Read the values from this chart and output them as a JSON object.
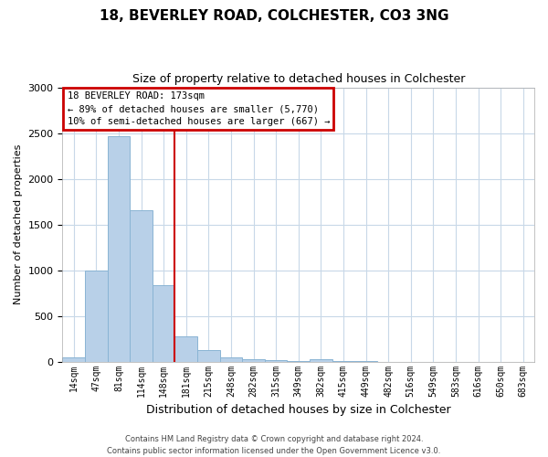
{
  "title1": "18, BEVERLEY ROAD, COLCHESTER, CO3 3NG",
  "title2": "Size of property relative to detached houses in Colchester",
  "xlabel": "Distribution of detached houses by size in Colchester",
  "ylabel": "Number of detached properties",
  "bar_labels": [
    "14sqm",
    "47sqm",
    "81sqm",
    "114sqm",
    "148sqm",
    "181sqm",
    "215sqm",
    "248sqm",
    "282sqm",
    "315sqm",
    "349sqm",
    "382sqm",
    "415sqm",
    "449sqm",
    "482sqm",
    "516sqm",
    "549sqm",
    "583sqm",
    "616sqm",
    "650sqm",
    "683sqm"
  ],
  "bar_values": [
    50,
    1000,
    2470,
    1660,
    840,
    275,
    125,
    50,
    30,
    15,
    10,
    25,
    5,
    10,
    0,
    0,
    0,
    0,
    0,
    0,
    0
  ],
  "bar_color": "#b8d0e8",
  "bar_edge_color": "#8ab4d4",
  "vline_color": "#cc0000",
  "annotation_title": "18 BEVERLEY ROAD: 173sqm",
  "annotation_line1": "← 89% of detached houses are smaller (5,770)",
  "annotation_line2": "10% of semi-detached houses are larger (667) →",
  "annotation_box_color": "#cc0000",
  "ylim": [
    0,
    3000
  ],
  "yticks": [
    0,
    500,
    1000,
    1500,
    2000,
    2500,
    3000
  ],
  "footer1": "Contains HM Land Registry data © Crown copyright and database right 2024.",
  "footer2": "Contains public sector information licensed under the Open Government Licence v3.0.",
  "bg_color": "#ffffff",
  "grid_color": "#c8d8e8"
}
